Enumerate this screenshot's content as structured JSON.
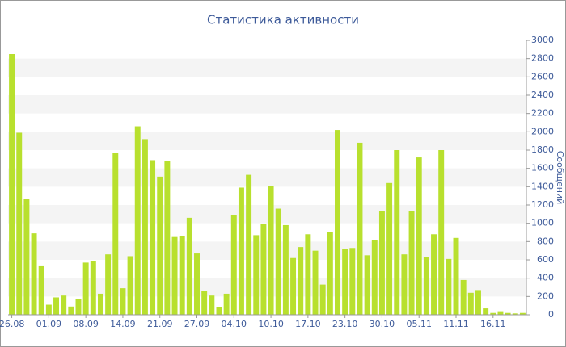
{
  "chart_data": {
    "type": "bar",
    "title": "Статистика активности",
    "y_label": "Сообщений",
    "categories": [
      "26.08",
      null,
      null,
      null,
      null,
      "01.09",
      null,
      null,
      null,
      null,
      "08.09",
      null,
      null,
      null,
      null,
      "14.09",
      null,
      null,
      null,
      null,
      "21.09",
      null,
      null,
      null,
      null,
      "27.09",
      null,
      null,
      null,
      null,
      "04.10",
      null,
      null,
      null,
      null,
      "10.10",
      null,
      null,
      null,
      null,
      "17.10",
      null,
      null,
      null,
      null,
      "23.10",
      null,
      null,
      null,
      null,
      "30.10",
      null,
      null,
      null,
      null,
      "05.11",
      null,
      null,
      null,
      null,
      "11.11",
      null,
      null,
      null,
      null,
      "16.11",
      null,
      null,
      null,
      null
    ],
    "values": [
      2850,
      1990,
      1270,
      890,
      530,
      110,
      190,
      210,
      90,
      170,
      570,
      590,
      230,
      660,
      1770,
      290,
      640,
      2060,
      1920,
      1690,
      1510,
      1680,
      850,
      860,
      1060,
      670,
      260,
      210,
      80,
      230,
      1090,
      1390,
      1530,
      870,
      990,
      1410,
      1160,
      980,
      620,
      740,
      880,
      700,
      330,
      900,
      2020,
      720,
      730,
      1880,
      650,
      820,
      1130,
      1440,
      1800,
      660,
      1130,
      1720,
      630,
      880,
      1800,
      610,
      840,
      380,
      240,
      270,
      70,
      20,
      30,
      20,
      15,
      20
    ],
    "color": "#b8e02e",
    "ylim": [
      0,
      3000
    ],
    "yticks": [
      0,
      200,
      400,
      600,
      800,
      1000,
      1200,
      1400,
      1600,
      1800,
      2000,
      2200,
      2400,
      2600,
      2800,
      3000
    ],
    "grid": true
  }
}
